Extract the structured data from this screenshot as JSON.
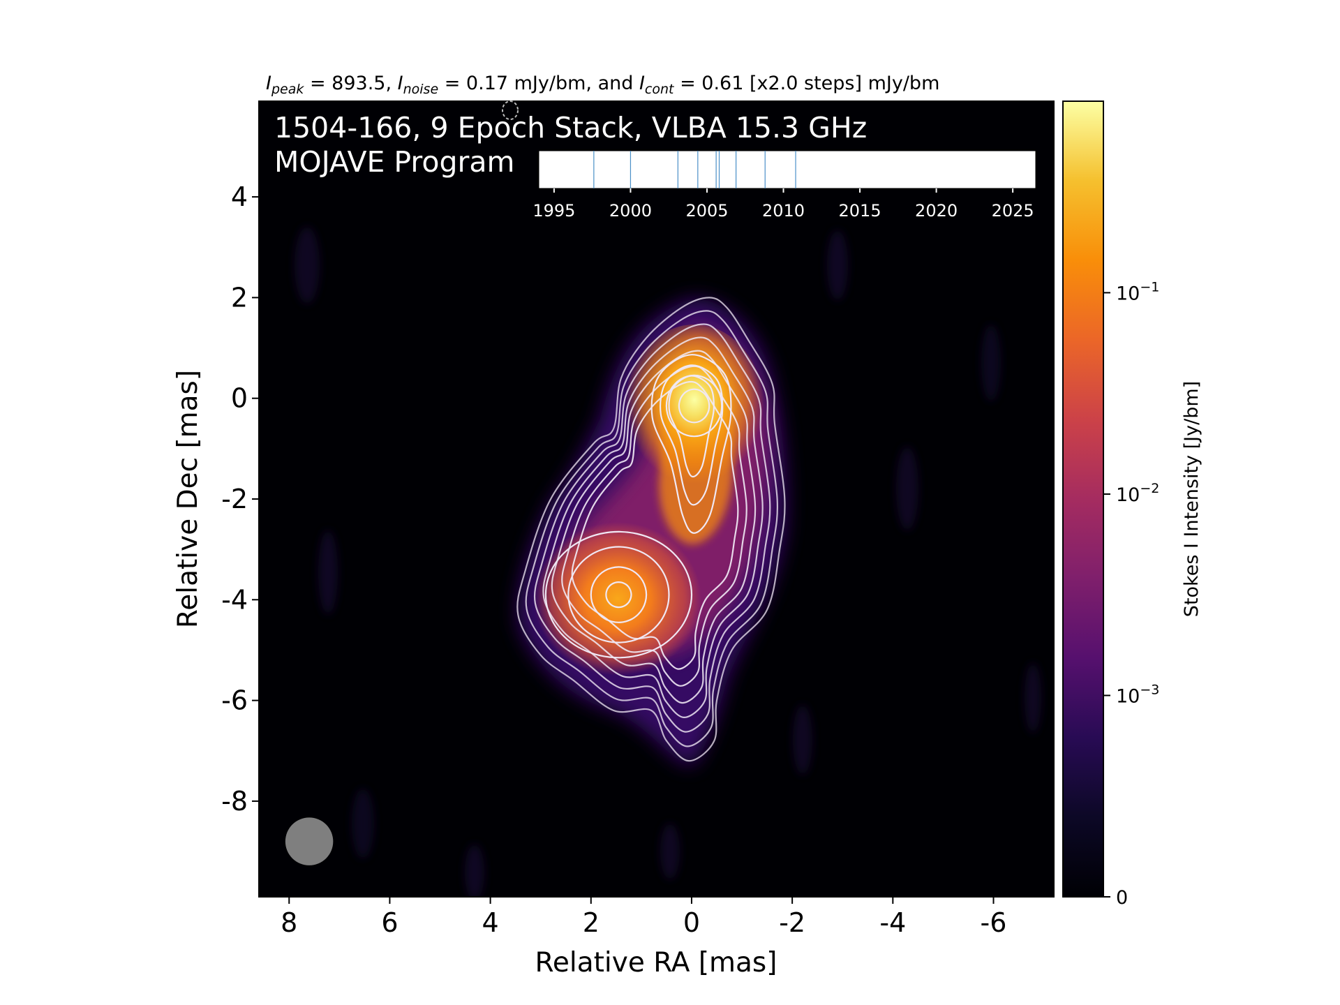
{
  "chart_data": {
    "type": "heatmap",
    "header": {
      "peak_sym": "I",
      "peak_sub": "peak",
      "peak_text": " = 893.5, ",
      "noise_sym": "I",
      "noise_sub": "noise",
      "noise_text": " = 0.17 mJy/bm, and ",
      "cont_sym": "I",
      "cont_sub": "cont",
      "cont_text": " = 0.61 [x2.0 steps] mJy/bm"
    },
    "title_line1": "1504-166, 9 Epoch Stack, VLBA 15.3 GHz",
    "title_line2": "MOJAVE Program",
    "xlabel": "Relative RA [mas]",
    "ylabel": "Relative Dec [mas]",
    "xlim": [
      8.6,
      -7.2
    ],
    "ylim": [
      -9.9,
      5.9
    ],
    "x_ticks": [
      8,
      6,
      4,
      2,
      0,
      -2,
      -4,
      -6
    ],
    "x_tick_labels": [
      "8",
      "6",
      "4",
      "2",
      "0",
      "-2",
      "-4",
      "-6"
    ],
    "y_ticks": [
      4,
      2,
      0,
      -2,
      -4,
      -6,
      -8
    ],
    "y_tick_labels": [
      "4",
      "2",
      "0",
      "-2",
      "-4",
      "-6",
      "-8"
    ],
    "components": [
      {
        "ra": 0.0,
        "dec": -0.1,
        "peak_jy_bm": 0.8935
      },
      {
        "ra": 1.45,
        "dec": -3.9,
        "peak_jy_bm": 0.13
      }
    ],
    "beam": {
      "ra": 7.6,
      "dec": -8.8,
      "major_mas": 0.95,
      "minor_mas": 0.95
    },
    "contour_levels_mjy_bm": [
      0.61,
      1.22,
      2.44,
      4.88,
      9.76,
      19.52,
      39.04,
      78.08,
      156.16,
      312.32,
      624.64
    ],
    "epoch_timeline": {
      "xlim": [
        1994,
        2026.5
      ],
      "ticks": [
        1995,
        2000,
        2005,
        2010,
        2015,
        2020,
        2025
      ],
      "tick_labels": [
        "1995",
        "2000",
        "2005",
        "2010",
        "2015",
        "2020",
        "2025"
      ],
      "epochs": [
        1997.6,
        2000.0,
        2003.1,
        2004.4,
        2005.6,
        2005.8,
        2006.9,
        2008.8,
        2010.8
      ]
    },
    "colorbar": {
      "label": "Stokes I Intensity [Jy/bm]",
      "scale": "log",
      "ticks": [
        {
          "value": 0,
          "base": "0",
          "exp": ""
        },
        {
          "value": 0.001,
          "base": "10",
          "exp": "−3"
        },
        {
          "value": 0.01,
          "base": "10",
          "exp": "−2"
        },
        {
          "value": 0.1,
          "base": "10",
          "exp": "−1"
        }
      ],
      "max_jy_bm": 0.8935,
      "colormap": "inferno"
    },
    "colors": {
      "contour": "#f0e8f4",
      "beam": "#7f7f7f",
      "epoch_line": "#4a90c8",
      "background": "#000004"
    }
  }
}
